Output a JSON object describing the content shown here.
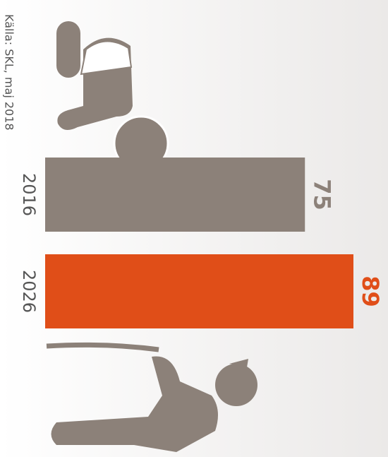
{
  "chart_data": {
    "type": "bar",
    "orientation": "horizontal",
    "source": "Källa: SKL, maj 2018",
    "categories": [
      "2016",
      "2026"
    ],
    "values": [
      75,
      89
    ],
    "colors": [
      "#8c8179",
      "#e04e18"
    ],
    "xlim": [
      0,
      100
    ]
  }
}
